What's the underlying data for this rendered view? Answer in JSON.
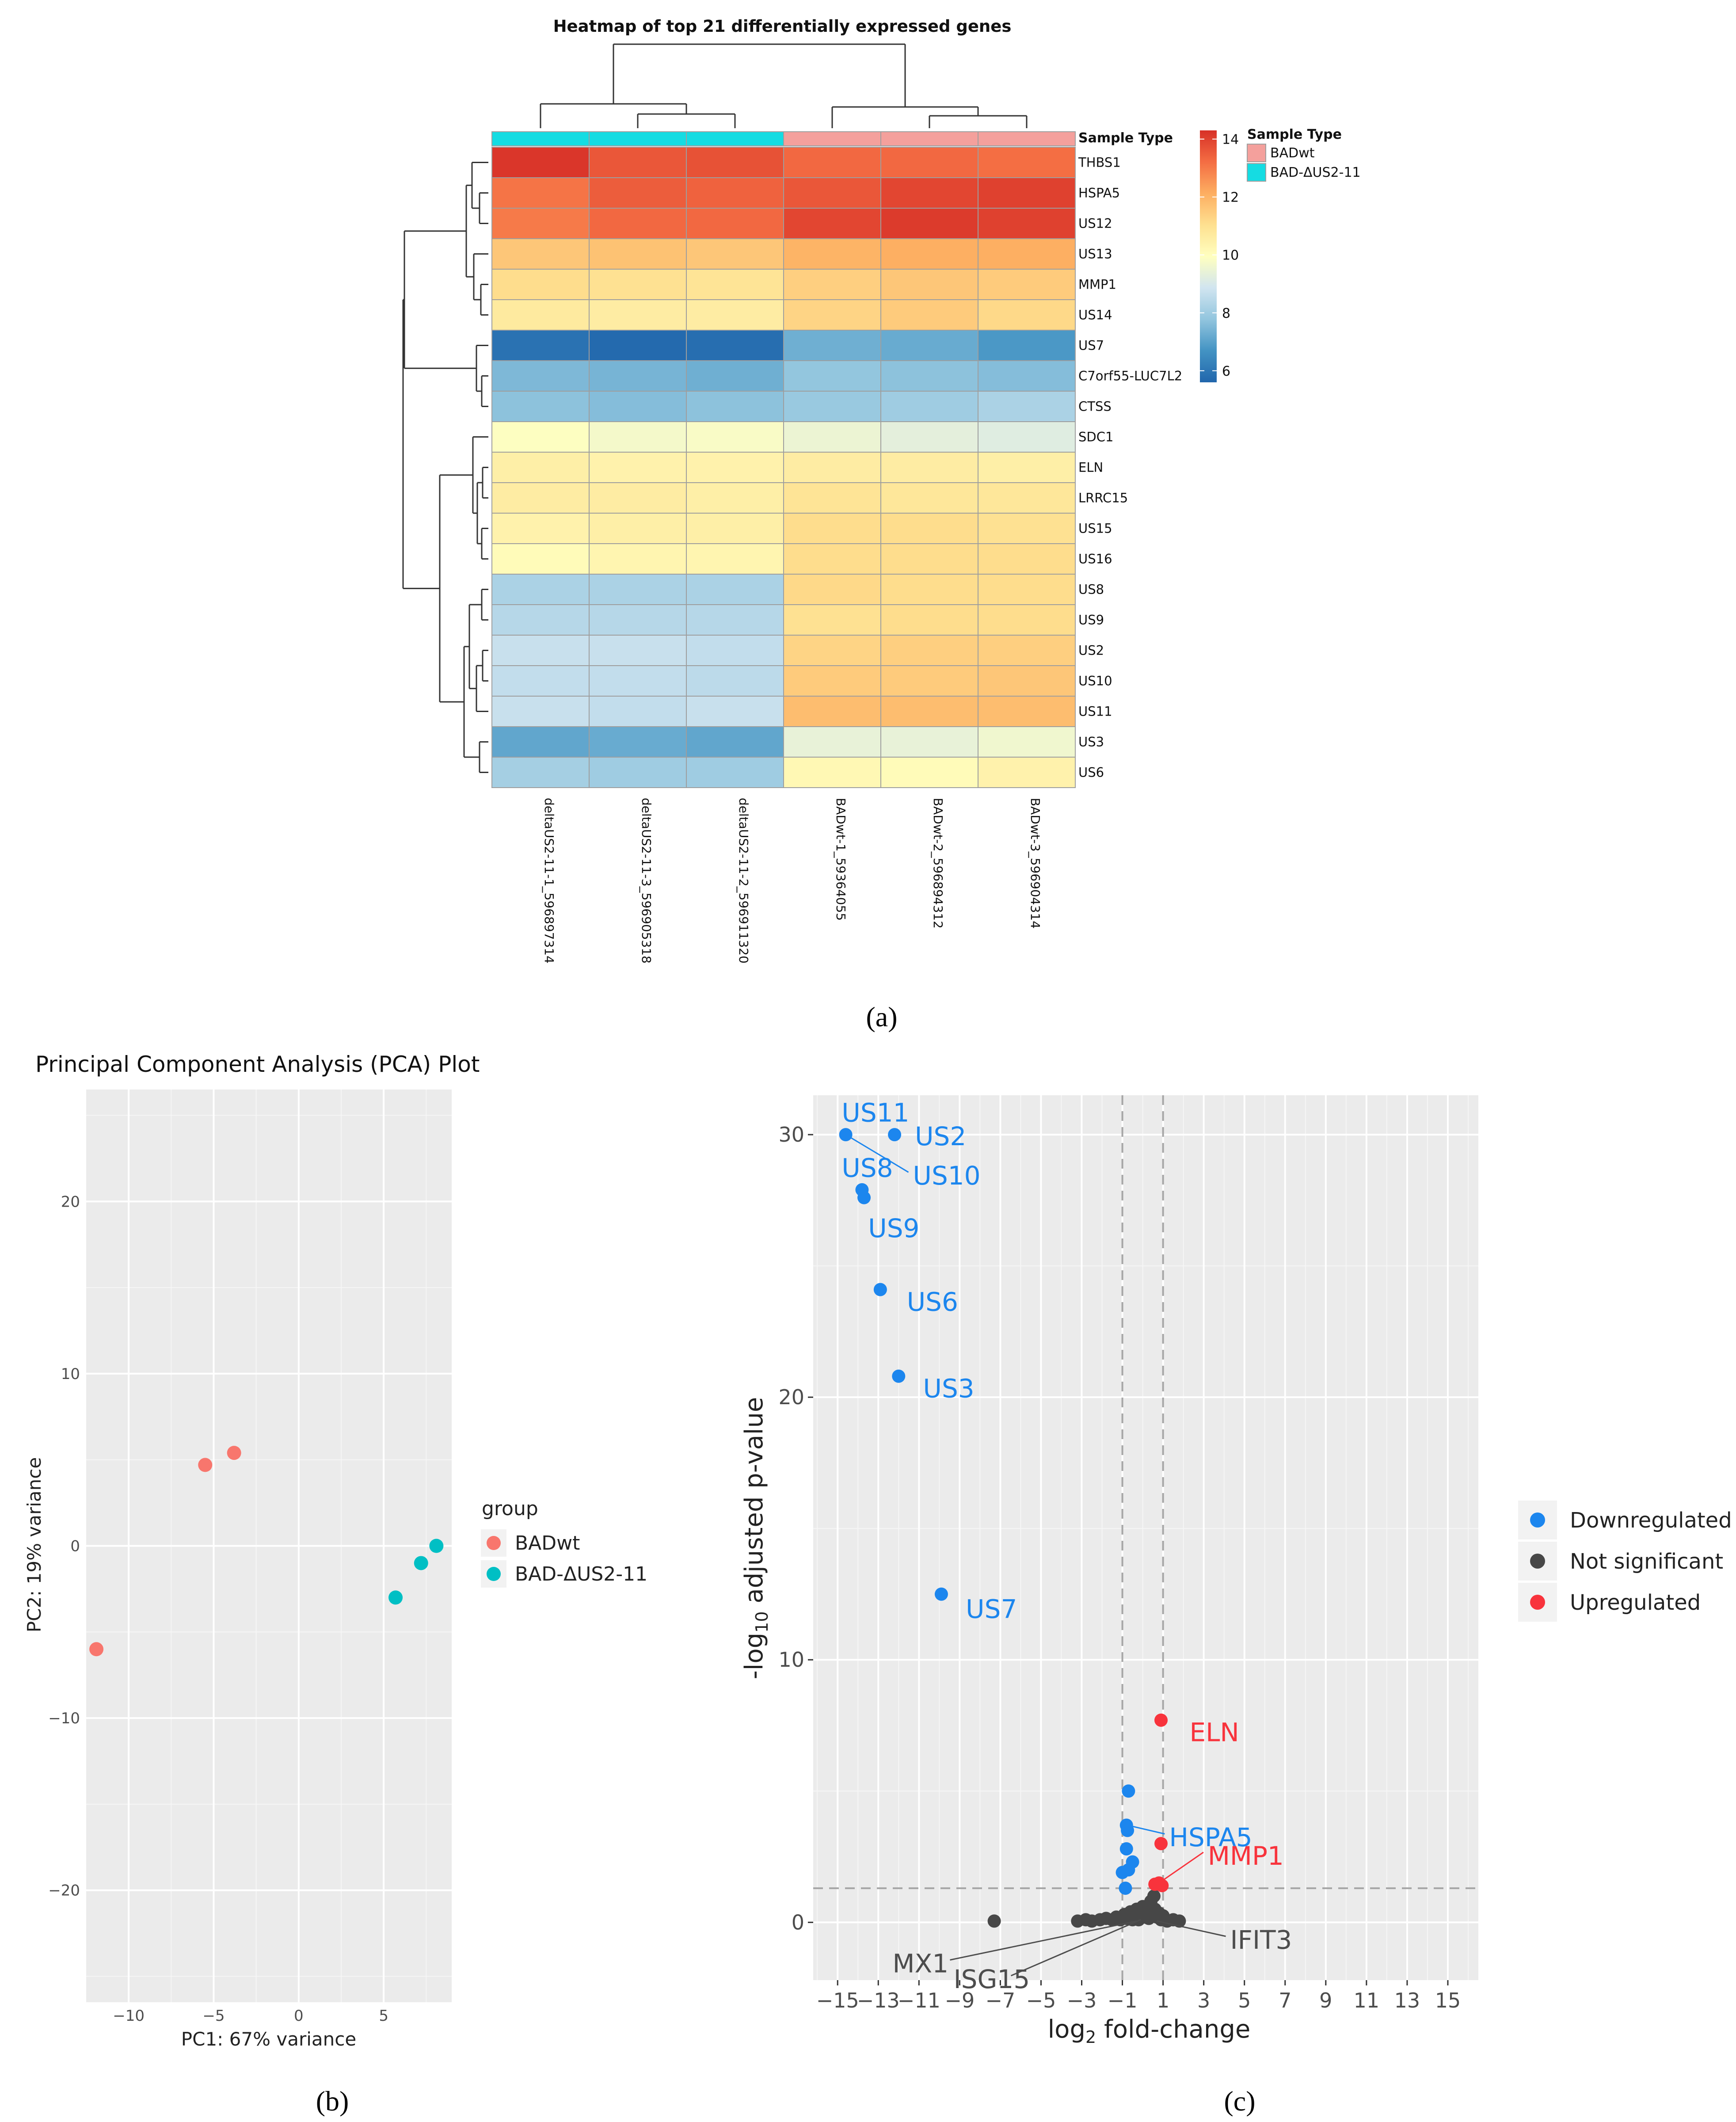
{
  "captions": {
    "a": "(a)",
    "b": "(b)",
    "c": "(c)"
  },
  "chart_data": [
    {
      "type": "heatmap",
      "title": "Heatmap of top 21 differentially expressed genes",
      "annotation_label": "Sample Type",
      "columns": [
        "deltaUS2-11-1_596897314",
        "deltaUS2-11-3_596905318",
        "deltaUS2-11-2_596911320",
        "BADwt-1_59364055",
        "BADwt-2_596894312",
        "BADwt-3_596904314"
      ],
      "column_groups": [
        "BAD-ΔUS2-11",
        "BAD-ΔUS2-11",
        "BAD-ΔUS2-11",
        "BADwt",
        "BADwt",
        "BADwt"
      ],
      "rows": [
        "THBS1",
        "HSPA5",
        "US12",
        "US13",
        "MMP1",
        "US14",
        "US7",
        "C7orf55-LUC7L2",
        "CTSS",
        "SDC1",
        "ELN",
        "LRRC15",
        "US15",
        "US16",
        "US8",
        "US9",
        "US2",
        "US10",
        "US11",
        "US3",
        "US6"
      ],
      "values": [
        [
          14.2,
          13.6,
          13.7,
          13.3,
          13.3,
          13.2
        ],
        [
          13.1,
          13.5,
          13.4,
          13.6,
          13.9,
          14.0
        ],
        [
          13.0,
          13.3,
          13.3,
          13.9,
          14.1,
          14.0
        ],
        [
          11.6,
          11.7,
          11.6,
          12.0,
          12.1,
          12.1
        ],
        [
          11.1,
          11.0,
          10.9,
          11.4,
          11.6,
          11.5
        ],
        [
          10.7,
          10.6,
          10.6,
          11.3,
          11.5,
          11.2
        ],
        [
          5.9,
          5.7,
          5.8,
          7.3,
          7.2,
          6.8
        ],
        [
          7.5,
          7.4,
          7.3,
          7.8,
          7.7,
          7.6
        ],
        [
          7.7,
          7.6,
          7.7,
          7.9,
          8.0,
          8.2
        ],
        [
          9.9,
          9.7,
          9.8,
          9.5,
          9.3,
          9.2
        ],
        [
          10.5,
          10.4,
          10.4,
          10.6,
          10.6,
          10.5
        ],
        [
          10.6,
          10.6,
          10.5,
          10.9,
          10.8,
          10.8
        ],
        [
          10.4,
          10.5,
          10.5,
          11.1,
          11.1,
          11.0
        ],
        [
          10.1,
          10.3,
          10.3,
          11.1,
          11.1,
          11.1
        ],
        [
          8.2,
          8.2,
          8.2,
          11.2,
          11.1,
          11.1
        ],
        [
          8.4,
          8.4,
          8.4,
          11.0,
          11.1,
          11.1
        ],
        [
          8.7,
          8.7,
          8.6,
          11.3,
          11.4,
          11.4
        ],
        [
          8.6,
          8.6,
          8.5,
          11.5,
          11.5,
          11.6
        ],
        [
          8.7,
          8.6,
          8.7,
          11.8,
          11.8,
          11.8
        ],
        [
          7.1,
          7.2,
          7.1,
          9.4,
          9.4,
          9.6
        ],
        [
          8.1,
          8.0,
          8.0,
          10.2,
          10.1,
          10.4
        ]
      ],
      "colorbar": {
        "ticks": [
          6,
          8,
          10,
          12,
          14
        ],
        "range": [
          5.6,
          14.3
        ],
        "colors": [
          "#2166ac",
          "#4393c3",
          "#92c5de",
          "#d1e5f0",
          "#ffffbf",
          "#fee090",
          "#fdae61",
          "#f46d43",
          "#d73027"
        ]
      },
      "legend": {
        "title": "Sample Type",
        "entries": [
          {
            "label": "BADwt",
            "color": "#f4a09c"
          },
          {
            "label": "BAD-ΔUS2-11",
            "color": "#15dce2"
          }
        ]
      }
    },
    {
      "type": "scatter",
      "title": "Principal Component Analysis (PCA) Plot",
      "xlabel": "PC1: 67% variance",
      "ylabel": "PC2: 19% variance",
      "xlim": [
        -12.5,
        9
      ],
      "ylim": [
        -26.5,
        26.5
      ],
      "xticks": [
        -10,
        -5,
        0,
        5
      ],
      "yticks": [
        -20,
        -10,
        0,
        10,
        20
      ],
      "legend_title": "group",
      "series": [
        {
          "name": "BADwt",
          "color": "#f8766d",
          "points": [
            [
              -5.5,
              4.7
            ],
            [
              -3.8,
              5.4
            ],
            [
              -11.9,
              -6.0
            ]
          ]
        },
        {
          "name": "BAD-ΔUS2-11",
          "color": "#00bfc4",
          "points": [
            [
              5.7,
              -3.0
            ],
            [
              7.2,
              -1.0
            ],
            [
              8.1,
              0.0
            ]
          ]
        }
      ]
    },
    {
      "type": "scatter",
      "title": "",
      "xlabel": "log2 fold-change",
      "ylabel": "-log10 adjusted p-value",
      "xlim": [
        -16.2,
        16.5
      ],
      "ylim": [
        -2.2,
        31.5
      ],
      "xticks": [
        -15,
        -13,
        -11,
        -9,
        -7,
        -5,
        -3,
        -1,
        1,
        3,
        5,
        7,
        9,
        11,
        13,
        15
      ],
      "yticks": [
        0,
        10,
        20,
        30
      ],
      "thresholds": {
        "vertical": [
          -1,
          1
        ],
        "horizontal": 1.3
      },
      "series": [
        {
          "name": "Downregulated",
          "color": "#1c86ee",
          "points": [
            [
              -14.6,
              30.0
            ],
            [
              -12.2,
              30.0
            ],
            [
              -13.8,
              27.9
            ],
            [
              -13.7,
              27.6
            ],
            [
              -12.9,
              24.1
            ],
            [
              -12.0,
              20.8
            ],
            [
              -9.9,
              12.5
            ],
            [
              -0.7,
              5.0
            ],
            [
              -0.8,
              3.7
            ],
            [
              -0.75,
              3.5
            ],
            [
              -0.8,
              2.8
            ],
            [
              -0.5,
              2.3
            ],
            [
              -0.7,
              2.0
            ],
            [
              -1.0,
              1.9
            ],
            [
              -0.85,
              1.3
            ]
          ]
        },
        {
          "name": "Not significant",
          "color": "#474747",
          "points": [
            [
              -7.3,
              0.05
            ],
            [
              -3.2,
              0.05
            ],
            [
              -2.8,
              0.1
            ],
            [
              -2.5,
              0.05
            ],
            [
              -2.1,
              0.1
            ],
            [
              -1.8,
              0.15
            ],
            [
              -1.5,
              0.1
            ],
            [
              -1.3,
              0.2
            ],
            [
              -1.1,
              0.1
            ],
            [
              -0.9,
              0.3
            ],
            [
              -0.8,
              0.15
            ],
            [
              -0.6,
              0.4
            ],
            [
              -0.5,
              0.1
            ],
            [
              -0.4,
              0.25
            ],
            [
              -0.3,
              0.5
            ],
            [
              -0.2,
              0.1
            ],
            [
              -0.1,
              0.3
            ],
            [
              0.0,
              0.6
            ],
            [
              0.1,
              0.2
            ],
            [
              0.2,
              0.45
            ],
            [
              0.3,
              0.15
            ],
            [
              0.4,
              0.8
            ],
            [
              0.5,
              0.3
            ],
            [
              0.55,
              1.0
            ],
            [
              0.6,
              0.5
            ],
            [
              0.7,
              0.2
            ],
            [
              0.8,
              0.35
            ],
            [
              0.9,
              0.1
            ],
            [
              1.0,
              0.25
            ],
            [
              1.2,
              0.05
            ],
            [
              1.5,
              0.1
            ],
            [
              1.8,
              0.05
            ]
          ]
        },
        {
          "name": "Upregulated",
          "color": "#f8333c",
          "points": [
            [
              0.9,
              7.7
            ],
            [
              0.9,
              3.0
            ],
            [
              0.6,
              1.45
            ],
            [
              0.8,
              1.5
            ],
            [
              0.95,
              1.4
            ]
          ]
        }
      ],
      "labels": {
        "down": [
          {
            "text": "US11",
            "at": [
              -14.6,
              30.0
            ],
            "lx": -14.8,
            "ly": 30.8
          },
          {
            "text": "US2",
            "at": [
              -12.2,
              30.0
            ],
            "lx": -11.2,
            "ly": 29.9
          },
          {
            "text": "US10",
            "at": [
              -14.6,
              30.0
            ],
            "lx": -11.3,
            "ly": 28.4
          },
          {
            "text": "US8",
            "at": [
              -13.8,
              27.9
            ],
            "lx": -14.8,
            "ly": 28.7
          },
          {
            "text": "US9",
            "at": [
              -13.7,
              27.6
            ],
            "lx": -13.5,
            "ly": 26.4
          },
          {
            "text": "US6",
            "at": [
              -12.9,
              24.1
            ],
            "lx": -11.6,
            "ly": 23.6
          },
          {
            "text": "US3",
            "at": [
              -12.0,
              20.8
            ],
            "lx": -10.8,
            "ly": 20.3
          },
          {
            "text": "US7",
            "at": [
              -9.9,
              12.5
            ],
            "lx": -8.7,
            "ly": 11.9
          },
          {
            "text": "HSPA5",
            "at": [
              -0.75,
              3.7
            ],
            "lx": 1.3,
            "ly": 3.2
          }
        ],
        "up": [
          {
            "text": "ELN",
            "at": [
              0.9,
              7.7
            ],
            "lx": 2.3,
            "ly": 7.2
          },
          {
            "text": "MMP1",
            "at": [
              0.8,
              1.5
            ],
            "lx": 3.2,
            "ly": 2.5
          }
        ],
        "ns": [
          {
            "text": "MX1",
            "at": [
              -0.3,
              0.05
            ],
            "lx": -12.3,
            "ly": -1.6
          },
          {
            "text": "ISG15",
            "at": [
              -0.1,
              0.1
            ],
            "lx": -9.3,
            "ly": -2.2
          },
          {
            "text": "IFIT3",
            "at": [
              0.7,
              0.05
            ],
            "lx": 4.3,
            "ly": -0.7
          }
        ]
      }
    }
  ]
}
